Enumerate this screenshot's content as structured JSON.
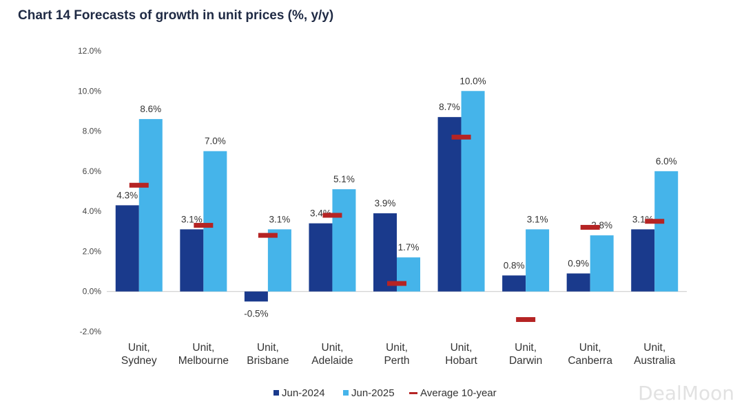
{
  "chart_data": {
    "type": "bar",
    "title": "Chart 14 Forecasts of growth in unit prices (%, y/y)",
    "categories": [
      [
        "Unit,",
        "Sydney"
      ],
      [
        "Unit,",
        "Melbourne"
      ],
      [
        "Unit,",
        "Brisbane"
      ],
      [
        "Unit,",
        "Adelaide"
      ],
      [
        "Unit,",
        "Perth"
      ],
      [
        "Unit,",
        "Hobart"
      ],
      [
        "Unit,",
        "Darwin"
      ],
      [
        "Unit,",
        "Canberra"
      ],
      [
        "Unit,",
        "Australia"
      ]
    ],
    "series": [
      {
        "name": "Jun-2024",
        "color": "#1a3a8c",
        "values": [
          4.3,
          3.1,
          -0.5,
          3.4,
          3.9,
          8.7,
          0.8,
          0.9,
          3.1
        ],
        "labels": [
          "4.3%",
          "3.1%",
          "-0.5%",
          "3.4%",
          "3.9%",
          "8.7%",
          "0.8%",
          "0.9%",
          "3.1%"
        ]
      },
      {
        "name": "Jun-2025",
        "color": "#45b4ea",
        "values": [
          8.6,
          7.0,
          3.1,
          5.1,
          1.7,
          10.0,
          3.1,
          2.8,
          6.0
        ],
        "labels": [
          "8.6%",
          "7.0%",
          "3.1%",
          "5.1%",
          "1.7%",
          "10.0%",
          "3.1%",
          "2.8%",
          "6.0%"
        ]
      }
    ],
    "markers": {
      "name": "Average 10-year",
      "color": "#b52424",
      "values": [
        5.3,
        3.3,
        2.8,
        3.8,
        0.4,
        7.7,
        -1.4,
        3.2,
        3.5
      ]
    },
    "ylim": [
      -2,
      12
    ],
    "yticks": [
      12,
      10,
      8,
      6,
      4,
      2,
      0,
      -2
    ],
    "ytick_labels": [
      "12.0%",
      "10.0%",
      "8.0%",
      "6.0%",
      "4.0%",
      "2.0%",
      "0.0%",
      "-2.0%"
    ],
    "xlabel": "",
    "ylabel": "",
    "legend": [
      "Jun-2024",
      "Jun-2025",
      "Average 10-year"
    ],
    "grid": false
  },
  "watermark": "DealMoon"
}
